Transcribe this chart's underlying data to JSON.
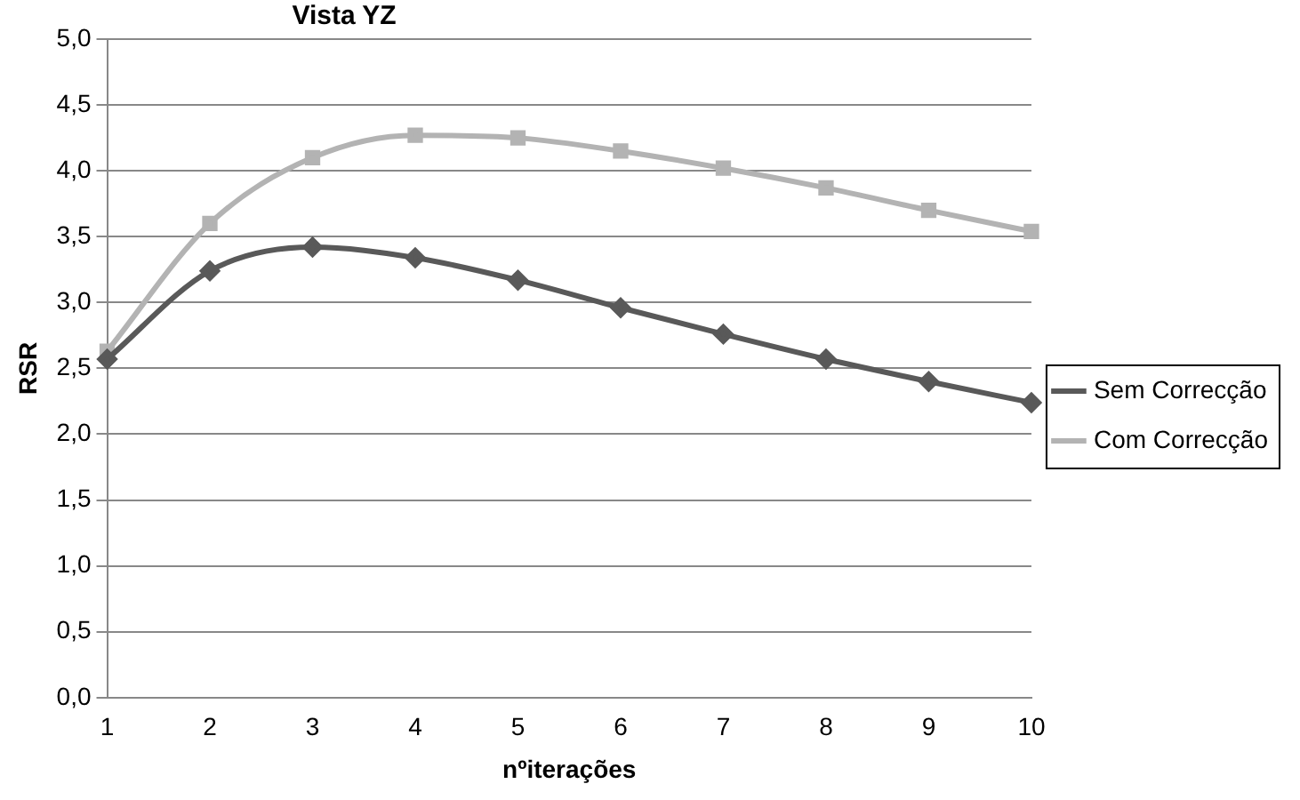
{
  "chart_data": {
    "type": "line",
    "title": "Vista YZ",
    "xlabel": "nºiterações",
    "ylabel": "RSR",
    "categories": [
      "1",
      "2",
      "3",
      "4",
      "5",
      "6",
      "7",
      "8",
      "9",
      "10"
    ],
    "series": [
      {
        "name": "Sem Correcção",
        "color": "#595959",
        "marker": "diamond",
        "values": [
          2.57,
          3.24,
          3.42,
          3.34,
          3.17,
          2.96,
          2.76,
          2.57,
          2.4,
          2.24
        ]
      },
      {
        "name": "Com Correcção",
        "color": "#b3b3b3",
        "marker": "square",
        "values": [
          2.63,
          3.6,
          4.1,
          4.27,
          4.25,
          4.15,
          4.02,
          3.87,
          3.7,
          3.54
        ]
      }
    ],
    "ylim": [
      0,
      5
    ],
    "yticks": [
      {
        "value": 0,
        "label": "0,0"
      },
      {
        "value": 0.5,
        "label": "0,5"
      },
      {
        "value": 1,
        "label": "1,0"
      },
      {
        "value": 1.5,
        "label": "1,5"
      },
      {
        "value": 2,
        "label": "2,0"
      },
      {
        "value": 2.5,
        "label": "2,5"
      },
      {
        "value": 3,
        "label": "3,0"
      },
      {
        "value": 3.5,
        "label": "3,5"
      },
      {
        "value": 4,
        "label": "4,0"
      },
      {
        "value": 4.5,
        "label": "4,5"
      },
      {
        "value": 5,
        "label": "5,0"
      }
    ],
    "grid": "y",
    "legend": "right",
    "line_style": "solid"
  }
}
